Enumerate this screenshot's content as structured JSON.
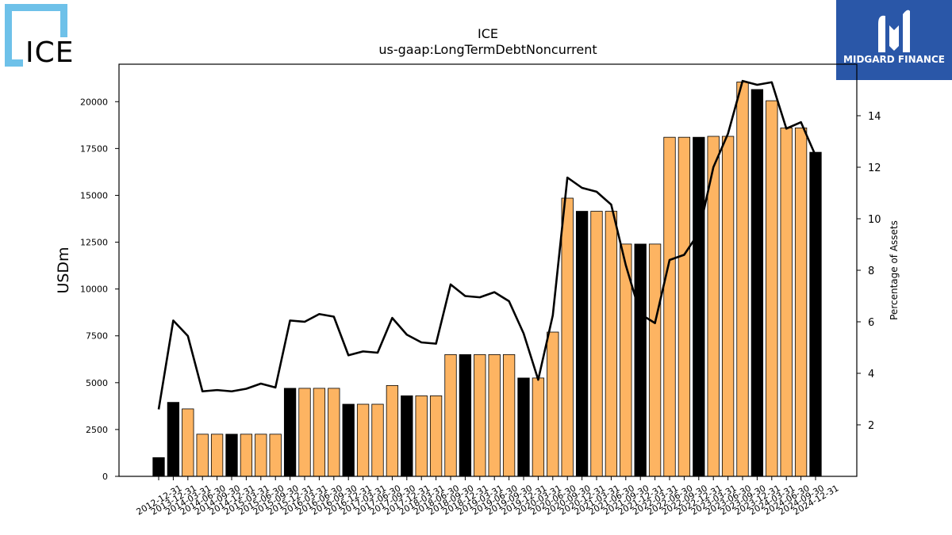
{
  "logo": {
    "text": "ICE",
    "frame_color": "#6ec1e9"
  },
  "brand": {
    "name": "MIDGARD FINANCE",
    "bg_color": "#2a57a8",
    "icon": "midgard-m-icon"
  },
  "chart_data": {
    "type": "bar",
    "title": "ICE",
    "subtitle": "us-gaap:LongTermDebtNoncurrent",
    "ylabel": "USDm",
    "y2label": "Percentage of Assets",
    "ylim": [
      0,
      22000
    ],
    "y2lim": [
      0,
      16
    ],
    "yticks": [
      0,
      2500,
      5000,
      7500,
      10000,
      12500,
      15000,
      17500,
      20000
    ],
    "y2ticks": [
      2,
      4,
      6,
      8,
      10,
      12,
      14
    ],
    "grid": false,
    "colors": {
      "annual": "#000000",
      "quarter": "#fdb462",
      "line": "#000000"
    },
    "categories": [
      "2012-12-31",
      "2013-12-31",
      "2014-03-31",
      "2014-06-30",
      "2014-09-30",
      "2014-12-31",
      "2015-03-31",
      "2015-06-30",
      "2015-09-30",
      "2015-12-31",
      "2016-03-31",
      "2016-06-30",
      "2016-09-30",
      "2016-12-31",
      "2017-03-31",
      "2017-06-30",
      "2017-09-30",
      "2017-12-31",
      "2018-03-31",
      "2018-06-30",
      "2018-09-30",
      "2018-12-31",
      "2019-03-31",
      "2019-06-30",
      "2019-09-30",
      "2019-12-31",
      "2020-03-31",
      "2020-06-30",
      "2020-09-30",
      "2020-12-31",
      "2021-03-31",
      "2021-06-30",
      "2021-09-30",
      "2021-12-31",
      "2022-03-31",
      "2022-06-30",
      "2022-09-30",
      "2022-12-31",
      "2023-03-31",
      "2023-06-30",
      "2023-09-30",
      "2023-12-31",
      "2024-03-31",
      "2024-06-30",
      "2024-09-30",
      "2024-12-31"
    ],
    "series": [
      {
        "kind": "bar",
        "values": [
          1000,
          3950,
          3600,
          2250,
          2250,
          2250,
          2250,
          2250,
          2250,
          4700,
          4700,
          4700,
          4700,
          3850,
          3850,
          3850,
          4850,
          4300,
          4300,
          4300,
          6500,
          6500,
          6500,
          6500,
          6500,
          5250,
          5250,
          7700,
          14850,
          14150,
          14150,
          14150,
          12400,
          12400,
          12400,
          18100,
          18100,
          18100,
          18150,
          18150,
          21050,
          20650,
          20050,
          18600,
          18600,
          17300
        ],
        "annual": [
          true,
          true,
          false,
          false,
          false,
          true,
          false,
          false,
          false,
          true,
          false,
          false,
          false,
          true,
          false,
          false,
          false,
          true,
          false,
          false,
          false,
          true,
          false,
          false,
          false,
          true,
          false,
          false,
          false,
          true,
          false,
          false,
          false,
          true,
          false,
          false,
          false,
          true,
          false,
          false,
          false,
          true,
          false,
          false,
          false,
          true
        ]
      },
      {
        "kind": "line",
        "axis": "right",
        "values": [
          2.6,
          6.05,
          5.45,
          3.3,
          3.35,
          3.3,
          3.4,
          3.6,
          3.45,
          6.05,
          6.0,
          6.3,
          6.2,
          4.7,
          4.85,
          4.8,
          6.15,
          5.5,
          5.2,
          5.15,
          7.45,
          7.0,
          6.95,
          7.15,
          6.8,
          5.55,
          3.75,
          6.25,
          11.6,
          11.2,
          11.05,
          10.55,
          8.2,
          6.3,
          5.95,
          8.4,
          8.6,
          9.45,
          12.0,
          13.3,
          15.35,
          15.2,
          15.3,
          13.5,
          13.75,
          12.45
        ]
      }
    ]
  }
}
